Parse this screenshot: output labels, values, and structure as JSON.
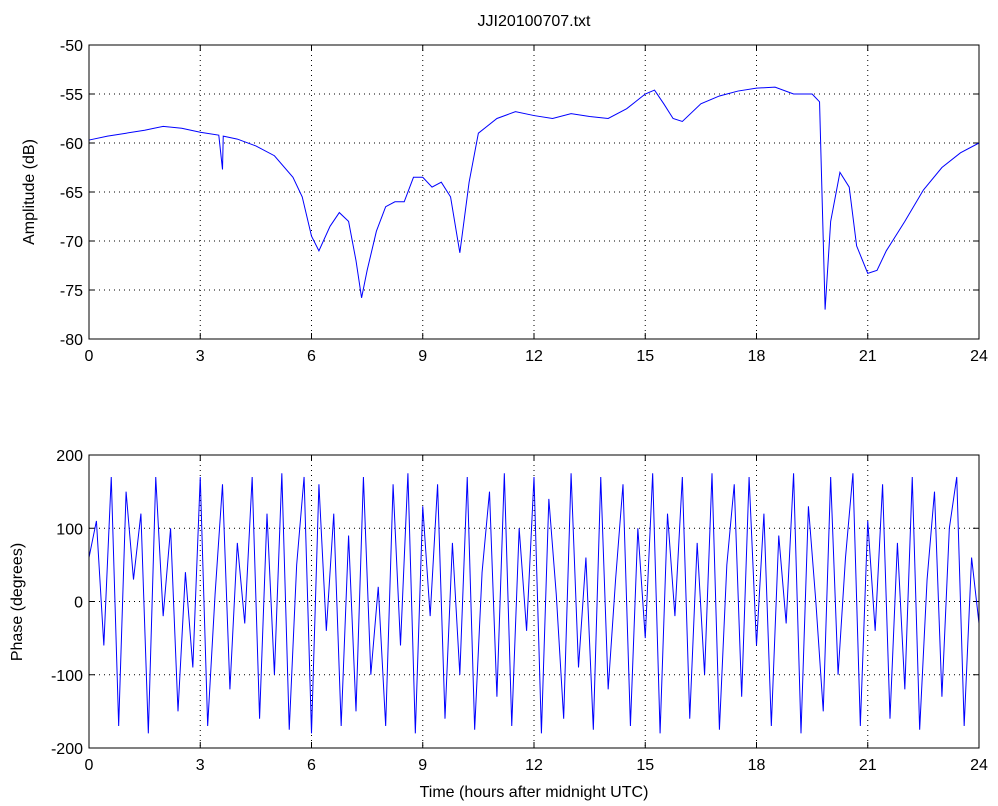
{
  "chart_data": [
    {
      "type": "line",
      "title": "JJI20100707.txt",
      "ylabel": "Amplitude (dB)",
      "x": [
        0,
        0.5,
        1,
        1.5,
        2,
        2.5,
        3,
        3.5,
        3.6,
        3.62,
        4,
        4.5,
        5,
        5.5,
        5.75,
        6,
        6.2,
        6.5,
        6.75,
        7,
        7.2,
        7.35,
        7.5,
        7.75,
        8,
        8.25,
        8.5,
        8.75,
        9,
        9.25,
        9.5,
        9.75,
        10,
        10.25,
        10.5,
        11,
        11.5,
        12,
        12.5,
        13,
        13.5,
        14,
        14.5,
        15,
        15.25,
        15.5,
        15.75,
        16,
        16.5,
        17,
        17.5,
        18,
        18.5,
        19,
        19.5,
        19.7,
        19.85,
        20,
        20.25,
        20.5,
        20.7,
        21,
        21.25,
        21.5,
        22,
        22.5,
        23,
        23.5,
        24
      ],
      "series": [
        {
          "name": "Amplitude",
          "color": "#0000ff",
          "values": [
            -59.7,
            -59.3,
            -59,
            -58.7,
            -58.3,
            -58.5,
            -58.9,
            -59.2,
            -62.7,
            -59.3,
            -59.6,
            -60.3,
            -61.3,
            -63.5,
            -65.5,
            -69.5,
            -71,
            -68.5,
            -67.1,
            -68,
            -72,
            -75.8,
            -73,
            -69,
            -66.5,
            -66,
            -66,
            -63.5,
            -63.5,
            -64.5,
            -64,
            -65.5,
            -71.2,
            -64,
            -59,
            -57.5,
            -56.8,
            -57.2,
            -57.5,
            -57,
            -57.3,
            -57.5,
            -56.5,
            -55,
            -54.6,
            -56,
            -57.5,
            -57.8,
            -56,
            -55.2,
            -54.7,
            -54.4,
            -54.3,
            -55,
            -55,
            -55.8,
            -77,
            -68,
            -63,
            -64.5,
            -70.5,
            -73.3,
            -73,
            -71,
            -68,
            -64.8,
            -62.5,
            -61,
            -60
          ]
        }
      ],
      "xlim": [
        0,
        24
      ],
      "xticks": [
        0,
        3,
        6,
        9,
        12,
        15,
        18,
        21,
        24
      ],
      "ylim": [
        -80,
        -50
      ],
      "yticks": [
        -80,
        -75,
        -70,
        -65,
        -60,
        -55,
        -50
      ],
      "grid": true
    },
    {
      "type": "line",
      "xlabel": "Time (hours after midnight UTC)",
      "ylabel": "Phase (degrees)",
      "x": [
        0,
        0.2,
        0.4,
        0.6,
        0.8,
        1,
        1.2,
        1.4,
        1.6,
        1.8,
        2,
        2.2,
        2.4,
        2.6,
        2.8,
        3,
        3.2,
        3.4,
        3.6,
        3.8,
        4,
        4.2,
        4.4,
        4.6,
        4.8,
        5,
        5.2,
        5.4,
        5.6,
        5.8,
        6,
        6.2,
        6.4,
        6.6,
        6.8,
        7,
        7.2,
        7.4,
        7.6,
        7.8,
        8,
        8.2,
        8.4,
        8.6,
        8.8,
        9,
        9.2,
        9.4,
        9.6,
        9.8,
        10,
        10.2,
        10.4,
        10.6,
        10.8,
        11,
        11.2,
        11.4,
        11.6,
        11.8,
        12,
        12.2,
        12.4,
        12.6,
        12.8,
        13,
        13.2,
        13.4,
        13.6,
        13.8,
        14,
        14.2,
        14.4,
        14.6,
        14.8,
        15,
        15.2,
        15.4,
        15.6,
        15.8,
        16,
        16.2,
        16.4,
        16.6,
        16.8,
        17,
        17.2,
        17.4,
        17.6,
        17.8,
        18,
        18.2,
        18.4,
        18.6,
        18.8,
        19,
        19.2,
        19.4,
        19.6,
        19.8,
        20,
        20.2,
        20.4,
        20.6,
        20.8,
        21,
        21.2,
        21.4,
        21.6,
        21.8,
        22,
        22.2,
        22.4,
        22.6,
        22.8,
        23,
        23.2,
        23.4,
        23.6,
        23.8,
        24
      ],
      "series": [
        {
          "name": "Phase",
          "color": "#0000ff",
          "values": [
            60,
            110,
            -60,
            170,
            -170,
            150,
            30,
            120,
            -180,
            170,
            -20,
            100,
            -150,
            40,
            -90,
            170,
            -170,
            10,
            160,
            -120,
            80,
            -30,
            170,
            -160,
            120,
            -100,
            175,
            -175,
            50,
            170,
            -180,
            160,
            -40,
            120,
            -170,
            90,
            -150,
            170,
            -100,
            20,
            -170,
            160,
            -60,
            175,
            -180,
            130,
            -20,
            160,
            -160,
            80,
            -100,
            170,
            -175,
            40,
            150,
            -130,
            175,
            -170,
            100,
            -40,
            170,
            -180,
            140,
            10,
            -160,
            175,
            -90,
            60,
            -175,
            170,
            -120,
            30,
            160,
            -170,
            100,
            -50,
            175,
            -180,
            120,
            -20,
            170,
            -160,
            80,
            -100,
            175,
            -175,
            50,
            160,
            -130,
            170,
            -60,
            120,
            -170,
            90,
            -30,
            175,
            -180,
            130,
            0,
            -150,
            170,
            -100,
            60,
            175,
            -170,
            110,
            -40,
            160,
            -160,
            80,
            -120,
            170,
            -175,
            30,
            150,
            -130,
            100,
            170,
            -170,
            60,
            -30
          ]
        }
      ],
      "xlim": [
        0,
        24
      ],
      "xticks": [
        0,
        3,
        6,
        9,
        12,
        15,
        18,
        21,
        24
      ],
      "ylim": [
        -200,
        200
      ],
      "yticks": [
        -200,
        -100,
        0,
        100,
        200
      ],
      "grid": true
    }
  ]
}
